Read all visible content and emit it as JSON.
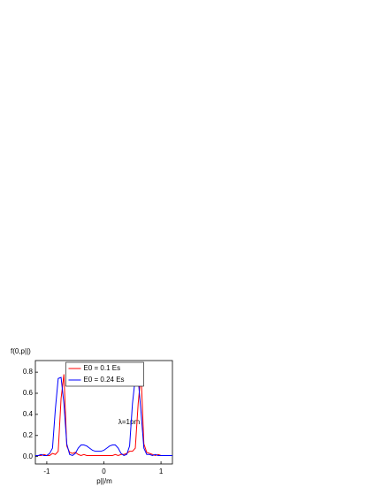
{
  "chart_data": {
    "type": "line",
    "y_label": "f(0,p||)",
    "x_label": "p||/m",
    "annotation": "λ=1pm",
    "x": [
      -1.2,
      -1.15,
      -1.1,
      -1.05,
      -1.0,
      -0.95,
      -0.9,
      -0.85,
      -0.8,
      -0.75,
      -0.7,
      -0.65,
      -0.6,
      -0.55,
      -0.5,
      -0.45,
      -0.4,
      -0.35,
      -0.3,
      -0.25,
      -0.2,
      -0.15,
      -0.1,
      -0.05,
      0,
      0.05,
      0.1,
      0.15,
      0.2,
      0.25,
      0.3,
      0.35,
      0.4,
      0.45,
      0.5,
      0.55,
      0.6,
      0.65,
      0.7,
      0.75,
      0.8,
      0.85,
      0.9,
      0.95,
      1.0,
      1.05,
      1.1,
      1.15,
      1.2
    ],
    "series": [
      {
        "name": "E0 = 0.1 Es",
        "color": "#ff0000",
        "values": [
          0.01,
          0.01,
          0.01,
          0.02,
          0.01,
          0.01,
          0.03,
          0.02,
          0.05,
          0.55,
          0.78,
          0.1,
          0.04,
          0.03,
          0.04,
          0.02,
          0.01,
          0.02,
          0.01,
          0.01,
          0.01,
          0.01,
          0.01,
          0.01,
          0.01,
          0.01,
          0.01,
          0.01,
          0.02,
          0.01,
          0.02,
          0.02,
          0.03,
          0.05,
          0.05,
          0.08,
          0.5,
          0.79,
          0.12,
          0.04,
          0.03,
          0.02,
          0.01,
          0.02,
          0.01,
          0.01,
          0.01,
          0.01,
          0.01
        ]
      },
      {
        "name": "E0 = 0.24 Es",
        "color": "#0000ff",
        "values": [
          0.01,
          0.01,
          0.02,
          0.01,
          0.01,
          0.03,
          0.08,
          0.45,
          0.74,
          0.75,
          0.5,
          0.12,
          0.02,
          0.01,
          0.03,
          0.08,
          0.11,
          0.11,
          0.1,
          0.08,
          0.06,
          0.05,
          0.05,
          0.05,
          0.06,
          0.08,
          0.1,
          0.11,
          0.11,
          0.08,
          0.03,
          0.01,
          0.02,
          0.1,
          0.5,
          0.75,
          0.74,
          0.42,
          0.08,
          0.02,
          0.02,
          0.01,
          0.02,
          0.01,
          0.01,
          0.01,
          0.01,
          0.01,
          0.01
        ]
      }
    ],
    "xlim": [
      -1.2,
      1.2
    ],
    "xticks": [
      -1,
      0,
      1
    ],
    "ylim": [
      -0.07,
      0.91
    ],
    "yticks": [
      {
        "value": 0,
        "label": "0.0"
      },
      0.2,
      0.4,
      0.6,
      0.8
    ],
    "grid": false,
    "legend": "top-center"
  }
}
